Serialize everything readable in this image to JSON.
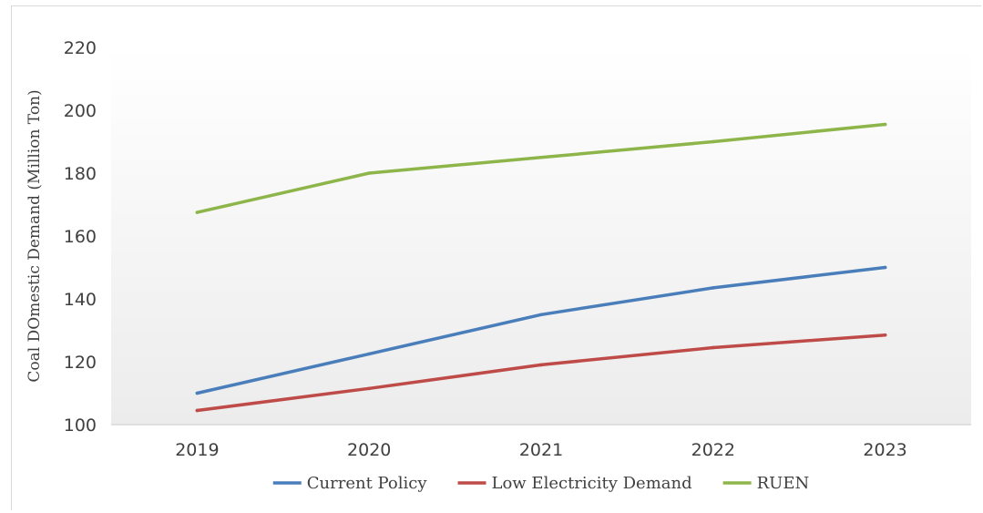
{
  "chart_data": {
    "type": "line",
    "title": "",
    "xlabel": "",
    "ylabel": "Coal DOmestic Demand (Million Ton)",
    "categories": [
      "2019",
      "2020",
      "2021",
      "2022",
      "2023"
    ],
    "ylim": [
      100,
      220
    ],
    "yticks": [
      100,
      120,
      140,
      160,
      180,
      200,
      220
    ],
    "grid": false,
    "legend_position": "bottom",
    "series": [
      {
        "name": "Current Policy",
        "color": "#4a7ebb",
        "values": [
          110,
          122.5,
          135,
          143.5,
          150
        ]
      },
      {
        "name": "Low Electricity Demand",
        "color": "#be4b48",
        "values": [
          104.5,
          111.5,
          119,
          124.5,
          128.5
        ]
      },
      {
        "name": "RUEN",
        "color": "#8db54a",
        "values": [
          167.5,
          180,
          185,
          190,
          195.5
        ]
      }
    ]
  }
}
